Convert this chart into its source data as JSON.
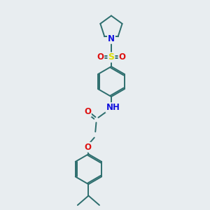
{
  "background_color": "#e8edf0",
  "bond_color": "#2d6e6e",
  "atom_colors": {
    "N": "#1010dd",
    "O": "#dd1010",
    "S": "#dddd00",
    "H": "#6699aa",
    "C": "#2d6e6e"
  },
  "linewidth": 1.4,
  "figsize": [
    3.0,
    3.0
  ],
  "dpi": 100
}
